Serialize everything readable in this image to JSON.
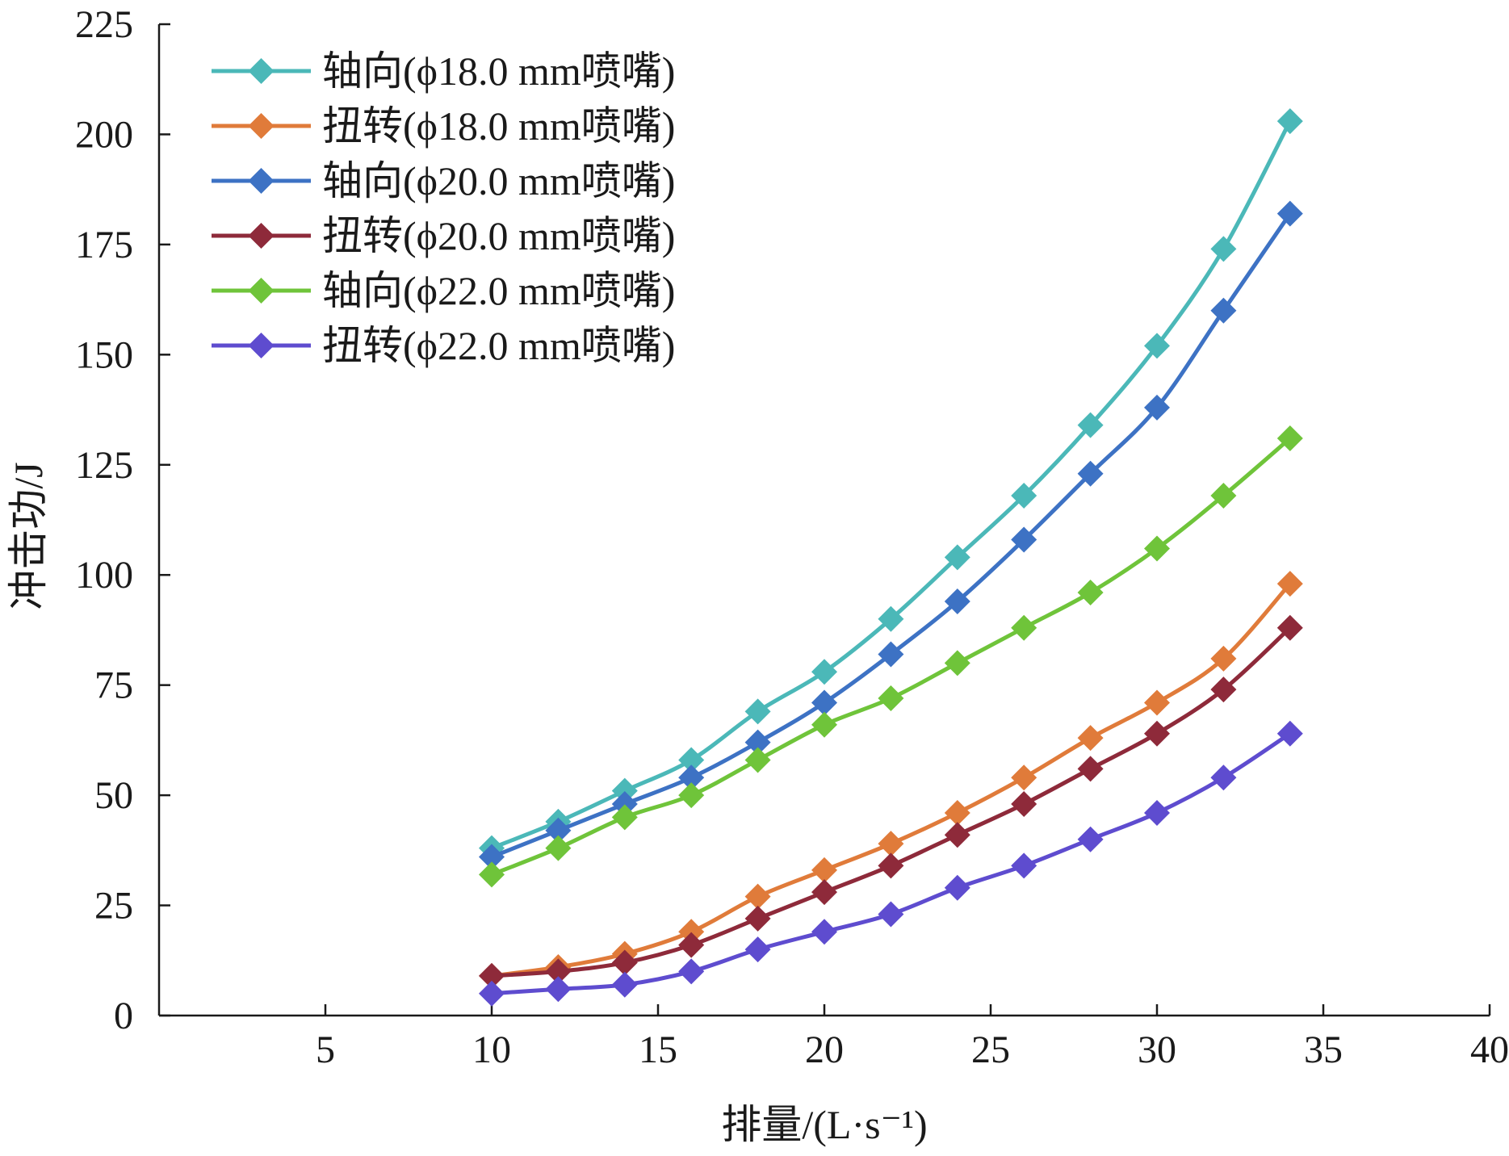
{
  "chart_data": {
    "type": "line",
    "title": "",
    "xlabel": "排量/(L·s⁻¹)",
    "ylabel": "冲击功/J",
    "xlim": [
      0,
      40
    ],
    "ylim": [
      0,
      225
    ],
    "x_ticks": [
      "5",
      "10",
      "15",
      "20",
      "25",
      "30",
      "35",
      "40"
    ],
    "y_ticks": [
      "0",
      "25",
      "50",
      "75",
      "100",
      "125",
      "150",
      "175",
      "200",
      "225"
    ],
    "grid": false,
    "legend_position": "top-left",
    "x": [
      10,
      12,
      14,
      16,
      18,
      20,
      22,
      24,
      26,
      28,
      30,
      32,
      34
    ],
    "series": [
      {
        "name": "轴向(ϕ18.0 mm喷嘴)",
        "color": "#4bb8b8",
        "marker": "diamond",
        "values": [
          38,
          44,
          51,
          58,
          69,
          78,
          90,
          104,
          118,
          134,
          152,
          174,
          203
        ]
      },
      {
        "name": "扭转(ϕ18.0 mm喷嘴)",
        "color": "#e07b3a",
        "marker": "diamond",
        "values": [
          9,
          11,
          14,
          19,
          27,
          33,
          39,
          46,
          54,
          63,
          71,
          81,
          98
        ]
      },
      {
        "name": "轴向(ϕ20.0 mm喷嘴)",
        "color": "#3d72c4",
        "marker": "diamond",
        "values": [
          36,
          42,
          48,
          54,
          62,
          71,
          82,
          94,
          108,
          123,
          138,
          160,
          182
        ]
      },
      {
        "name": "扭转(ϕ20.0 mm喷嘴)",
        "color": "#8e2a3a",
        "marker": "diamond",
        "values": [
          9,
          10,
          12,
          16,
          22,
          28,
          34,
          41,
          48,
          56,
          64,
          74,
          88
        ]
      },
      {
        "name": "轴向(ϕ22.0 mm喷嘴)",
        "color": "#6fc43a",
        "marker": "diamond",
        "values": [
          32,
          38,
          45,
          50,
          58,
          66,
          72,
          80,
          88,
          96,
          106,
          118,
          131
        ]
      },
      {
        "name": "扭转(ϕ22.0 mm喷嘴)",
        "color": "#5e4ccf",
        "marker": "diamond",
        "values": [
          5,
          6,
          7,
          10,
          15,
          19,
          23,
          29,
          34,
          40,
          46,
          54,
          64
        ]
      }
    ]
  }
}
